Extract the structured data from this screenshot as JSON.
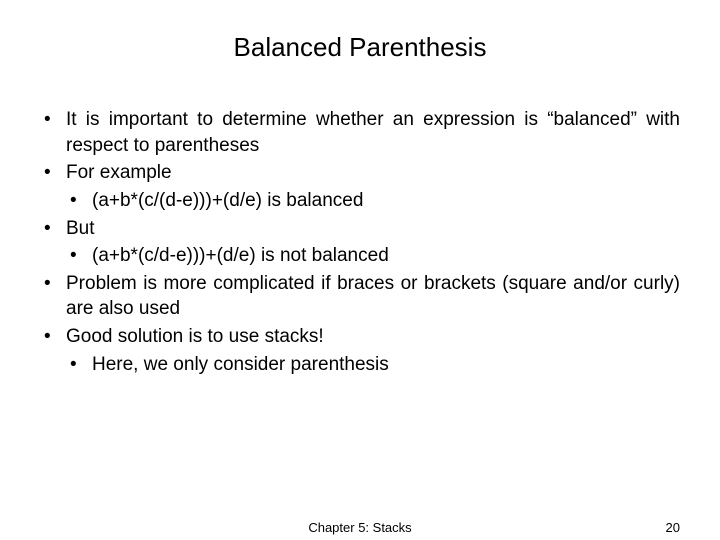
{
  "title": "Balanced Parenthesis",
  "bullets": {
    "b1": "It is important to determine whether an expression is “balanced” with respect to parentheses",
    "b2": "For example",
    "b2a": "(a+b*(c/(d-e)))+(d/e) is balanced",
    "b3": "But",
    "b3a": "(a+b*(c/d-e)))+(d/e) is not balanced",
    "b4": "Problem is more complicated if braces or brackets (square and/or curly) are also used",
    "b5": "Good solution is to use stacks!",
    "b5a": "Here, we only consider parenthesis"
  },
  "footer": {
    "center": "Chapter 5: Stacks",
    "page": "20"
  },
  "style": {
    "bg": "#ffffff",
    "text_color": "#000000",
    "title_fontsize": 26,
    "body_fontsize": 19,
    "footer_fontsize": 13,
    "font_family": "Arial"
  }
}
